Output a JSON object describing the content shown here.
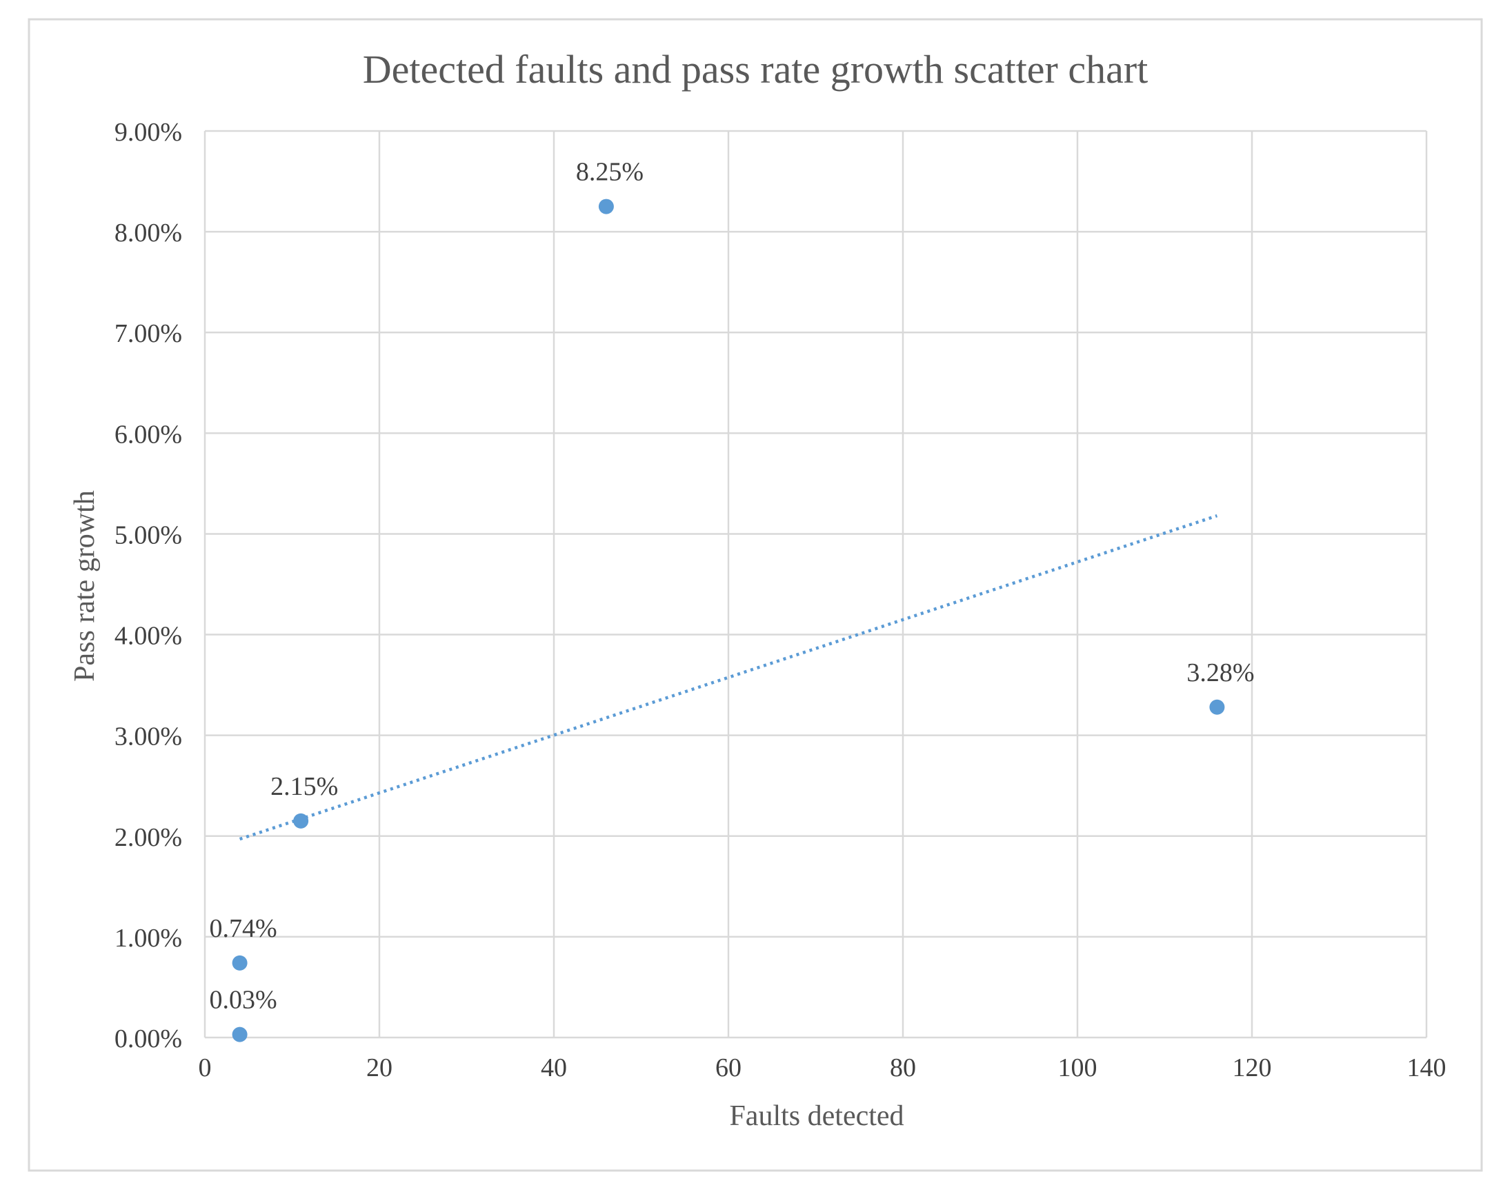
{
  "chart_data": {
    "type": "scatter",
    "title": "Detected faults and pass rate growth scatter chart",
    "xlabel": "Faults detected",
    "ylabel": "Pass rate growth",
    "xlim": [
      0,
      140
    ],
    "ylim": [
      0,
      0.09
    ],
    "x_ticks": [
      0,
      20,
      40,
      60,
      80,
      100,
      120,
      140
    ],
    "x_tick_labels": [
      "0",
      "20",
      "40",
      "60",
      "80",
      "100",
      "120",
      "140"
    ],
    "y_ticks": [
      0,
      0.01,
      0.02,
      0.03,
      0.04,
      0.05,
      0.06,
      0.07,
      0.08,
      0.09
    ],
    "y_tick_labels": [
      "0.00%",
      "1.00%",
      "2.00%",
      "3.00%",
      "4.00%",
      "5.00%",
      "6.00%",
      "7.00%",
      "8.00%",
      "9.00%"
    ],
    "grid": true,
    "legend": "none",
    "series": [
      {
        "points": [
          {
            "x": 46,
            "y": 0.0825,
            "label": "8.25%"
          },
          {
            "x": 116,
            "y": 0.0328,
            "label": "3.28%"
          },
          {
            "x": 11,
            "y": 0.0215,
            "label": "2.15%"
          },
          {
            "x": 4,
            "y": 0.0074,
            "label": "0.74%"
          },
          {
            "x": 4,
            "y": 0.0003,
            "label": "0.03%"
          }
        ]
      }
    ],
    "trendline": {
      "type": "linear",
      "style": "dotted",
      "x_start": 4,
      "y_start": 0.0197,
      "x_end": 116,
      "y_end": 0.0518
    },
    "colors": {
      "marker": "#5b9bd5",
      "trendline": "#5b9bd5",
      "grid": "#d9d9d9",
      "text": "#404040",
      "title": "#595959",
      "frame": "#d9d9d9"
    }
  }
}
